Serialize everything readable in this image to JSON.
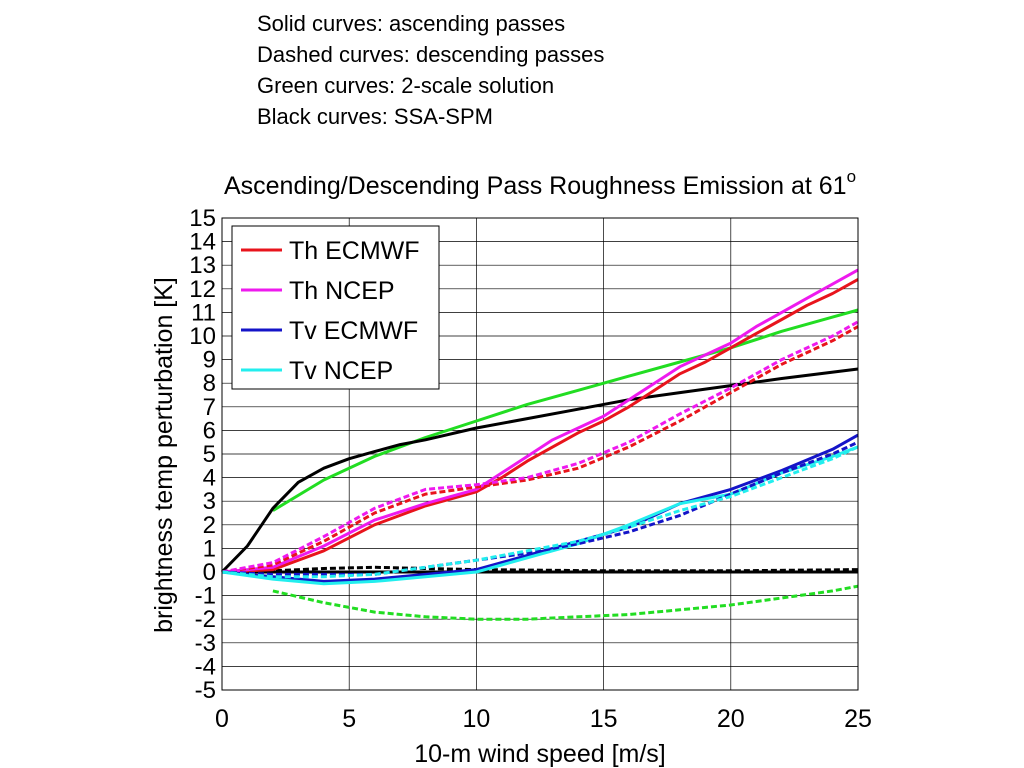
{
  "notes": [
    "Solid curves: ascending passes",
    "Dashed curves: descending passes",
    "Green curves: 2-scale solution",
    "Black curves: SSA-SPM"
  ],
  "chart_data": {
    "type": "line",
    "title": "Ascending/Descending Pass Roughness Emission at 61",
    "title_superscript": "o",
    "xlabel": "10-m wind speed [m/s]",
    "ylabel": "brightness temp perturbation [K]",
    "xlim": [
      0,
      25
    ],
    "ylim": [
      -5,
      15
    ],
    "xticks": [
      0,
      5,
      10,
      15,
      20,
      25
    ],
    "yticks": [
      -5,
      -4,
      -3,
      -2,
      -1,
      0,
      1,
      2,
      3,
      4,
      5,
      6,
      7,
      8,
      9,
      10,
      11,
      12,
      13,
      14,
      15
    ],
    "grid": true,
    "legend_position": "top-left",
    "legend": [
      {
        "label": "Th ECMWF",
        "color": "#e8141c"
      },
      {
        "label": "Th NCEP",
        "color": "#ee1aee"
      },
      {
        "label": "Tv ECMWF",
        "color": "#1414c8"
      },
      {
        "label": "Tv NCEP",
        "color": "#22eeee"
      }
    ],
    "series": [
      {
        "color": "#22dd22",
        "style": "solid",
        "x": [
          2,
          4,
          6,
          8,
          10,
          12,
          14,
          16,
          18,
          20,
          22,
          24,
          25
        ],
        "y": [
          2.6,
          3.9,
          4.9,
          5.7,
          6.4,
          7.1,
          7.7,
          8.3,
          8.9,
          9.5,
          10.2,
          10.8,
          11.1
        ]
      },
      {
        "color": "#22dd22",
        "style": "dashed",
        "x": [
          2,
          4,
          6,
          8,
          10,
          12,
          14,
          16,
          18,
          20,
          22,
          24,
          25
        ],
        "y": [
          -0.8,
          -1.3,
          -1.7,
          -1.9,
          -2.0,
          -2.0,
          -1.9,
          -1.8,
          -1.6,
          -1.4,
          -1.1,
          -0.8,
          -0.6
        ]
      },
      {
        "color": "#000000",
        "style": "solid",
        "x": [
          0,
          1,
          2,
          3,
          4,
          5,
          6,
          7,
          8,
          10,
          12,
          14,
          16,
          18,
          20,
          22,
          25
        ],
        "y": [
          0,
          1.1,
          2.7,
          3.8,
          4.4,
          4.8,
          5.1,
          5.4,
          5.6,
          6.1,
          6.5,
          6.9,
          7.3,
          7.6,
          7.9,
          8.2,
          8.6
        ]
      },
      {
        "color": "#000000",
        "style": "dashed",
        "x": [
          0,
          2,
          4,
          6,
          8,
          10,
          15,
          20,
          25
        ],
        "y": [
          0,
          0.05,
          0.15,
          0.2,
          0.15,
          0.1,
          0.05,
          0.05,
          0.1
        ]
      },
      {
        "color": "#000000",
        "style": "solid",
        "x": [
          0,
          5,
          10,
          15,
          20,
          25
        ],
        "y": [
          0,
          0,
          0,
          0,
          0,
          0
        ]
      },
      {
        "color": "#e8141c",
        "style": "solid",
        "x": [
          0,
          2,
          4,
          6,
          8,
          10,
          11,
          12,
          13,
          14,
          15,
          16,
          17,
          18,
          19,
          20,
          21,
          22,
          23,
          24,
          25
        ],
        "y": [
          0,
          0.1,
          0.9,
          2.0,
          2.8,
          3.4,
          4.0,
          4.7,
          5.3,
          5.9,
          6.4,
          7.0,
          7.7,
          8.4,
          8.9,
          9.5,
          10.1,
          10.7,
          11.3,
          11.8,
          12.4
        ]
      },
      {
        "color": "#ee1aee",
        "style": "solid",
        "x": [
          0,
          2,
          4,
          6,
          8,
          10,
          11,
          12,
          13,
          14,
          15,
          16,
          17,
          18,
          19,
          20,
          21,
          22,
          23,
          24,
          25
        ],
        "y": [
          0,
          0.2,
          1.1,
          2.2,
          2.9,
          3.5,
          4.2,
          4.9,
          5.6,
          6.1,
          6.6,
          7.3,
          8.0,
          8.7,
          9.2,
          9.7,
          10.4,
          11.0,
          11.6,
          12.2,
          12.8
        ]
      },
      {
        "color": "#e8141c",
        "style": "dashed",
        "x": [
          0,
          2,
          4,
          6,
          8,
          10,
          12,
          14,
          16,
          18,
          20,
          22,
          24,
          25
        ],
        "y": [
          0,
          0.3,
          1.3,
          2.5,
          3.3,
          3.6,
          3.9,
          4.4,
          5.3,
          6.4,
          7.6,
          8.8,
          9.8,
          10.4
        ]
      },
      {
        "color": "#ee1aee",
        "style": "dashed",
        "x": [
          0,
          2,
          4,
          6,
          8,
          10,
          12,
          14,
          16,
          18,
          20,
          22,
          24,
          25
        ],
        "y": [
          0,
          0.4,
          1.5,
          2.7,
          3.5,
          3.7,
          4.0,
          4.6,
          5.5,
          6.7,
          7.8,
          9.0,
          10.0,
          10.6
        ]
      },
      {
        "color": "#1414c8",
        "style": "solid",
        "x": [
          0,
          2,
          4,
          6,
          8,
          10,
          12,
          14,
          16,
          18,
          20,
          22,
          24,
          25
        ],
        "y": [
          0,
          -0.2,
          -0.4,
          -0.3,
          -0.1,
          0.1,
          0.7,
          1.3,
          1.9,
          2.9,
          3.5,
          4.3,
          5.2,
          5.8
        ]
      },
      {
        "color": "#22eeee",
        "style": "solid",
        "x": [
          0,
          2,
          4,
          6,
          8,
          10,
          12,
          14,
          16,
          18,
          20,
          22,
          24,
          25
        ],
        "y": [
          0,
          -0.3,
          -0.5,
          -0.4,
          -0.2,
          0.0,
          0.6,
          1.2,
          2.0,
          2.9,
          3.3,
          4.2,
          4.9,
          5.3
        ]
      },
      {
        "color": "#1414c8",
        "style": "dashed",
        "x": [
          0,
          2,
          4,
          6,
          8,
          10,
          12,
          14,
          16,
          18,
          20,
          22,
          24,
          25
        ],
        "y": [
          0,
          -0.1,
          -0.1,
          -0.1,
          0.2,
          0.5,
          0.8,
          1.2,
          1.7,
          2.4,
          3.3,
          4.2,
          5.0,
          5.5
        ]
      },
      {
        "color": "#22eeee",
        "style": "dashed",
        "x": [
          0,
          2,
          4,
          6,
          8,
          10,
          12,
          14,
          16,
          18,
          20,
          22,
          24,
          25
        ],
        "y": [
          0,
          -0.2,
          -0.2,
          -0.1,
          0.2,
          0.5,
          0.9,
          1.3,
          1.9,
          2.6,
          3.2,
          4.0,
          4.8,
          5.3
        ]
      }
    ]
  }
}
